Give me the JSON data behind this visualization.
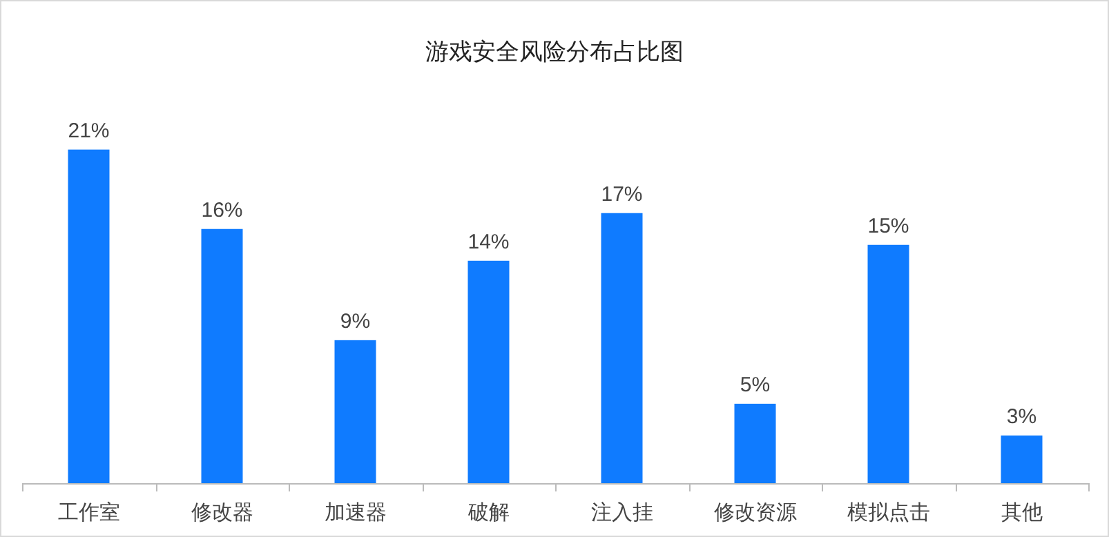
{
  "chart_data": {
    "type": "bar",
    "title": "游戏安全风险分布占比图",
    "categories": [
      "工作室",
      "修改器",
      "加速器",
      "破解",
      "注入挂",
      "修改资源",
      "模拟点击",
      "其他"
    ],
    "values": [
      21,
      16,
      9,
      14,
      17,
      5,
      15,
      3
    ],
    "value_labels": [
      "21%",
      "16%",
      "9%",
      "14%",
      "17%",
      "5%",
      "15%",
      "3%"
    ],
    "color": "#0f7bff"
  }
}
